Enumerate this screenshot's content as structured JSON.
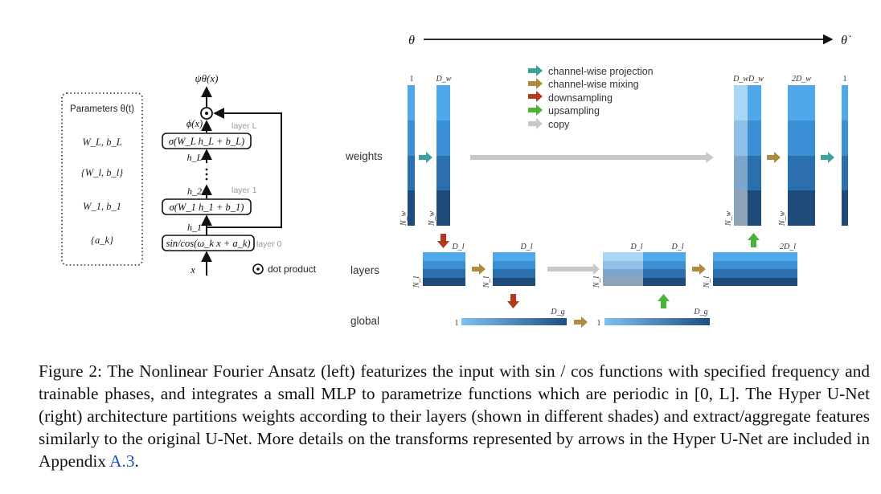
{
  "left_diagram": {
    "params_box": {
      "title": "Parameters θ(t)",
      "entries": [
        "W_L, b_L",
        "{W_l, b_l}",
        "W_1, b_1",
        "{a_k}"
      ]
    },
    "output_label": "ψθ(x)",
    "phi_label": "ϕ(x)",
    "layer_L_block": "σ(W_L h_L + b_L)",
    "layer_L_tag": "layer L",
    "h_L": "h_L",
    "h_2": "h_2",
    "layer_1_block": "σ(W_1 h_1 + b_1)",
    "layer_1_tag": "layer 1",
    "h_1": "h_1",
    "layer_0_block": "sin/cos(ω_k x + a_k)",
    "layer_0_tag": "layer 0",
    "input_label": "x",
    "dot_product_label": "dot product"
  },
  "right_diagram": {
    "theta_start": "θ",
    "theta_end": "θ̇",
    "legend": [
      {
        "label": "channel-wise projection",
        "color": "#3aa39a"
      },
      {
        "label": "channel-wise mixing",
        "color": "#b08a3e"
      },
      {
        "label": "downsampling",
        "color": "#b23a1e"
      },
      {
        "label": "upsampling",
        "color": "#4bb33a"
      },
      {
        "label": "copy",
        "color": "#c8c8c8"
      }
    ],
    "row_labels": {
      "weights": "weights",
      "layers": "layers",
      "global": "global"
    },
    "col_labels": {
      "w1": "1",
      "dw": "D_w",
      "dwdw": "D_wD_w",
      "two_dw": "2D_w",
      "w_out": "1",
      "nw": "N_w",
      "dl": "D_l",
      "two_dl": "2D_l",
      "nl": "N_l",
      "dg": "D_g",
      "g1": "1"
    }
  },
  "caption": {
    "part1": "Figure 2: The Nonlinear Fourier Ansatz (left) featurizes the input with sin / cos functions with specified frequency and trainable phases, and integrates a small MLP to parametrize functions which are periodic in [0, L]. The Hyper U-Net (right) architecture partitions weights according to their layers (shown in different shades) and extract/aggregate features similarly to the original U-Net. More details on the transforms represented by arrows in the Hyper U-Net are included in Appendix ",
    "link": "A.3",
    "part2": "."
  }
}
